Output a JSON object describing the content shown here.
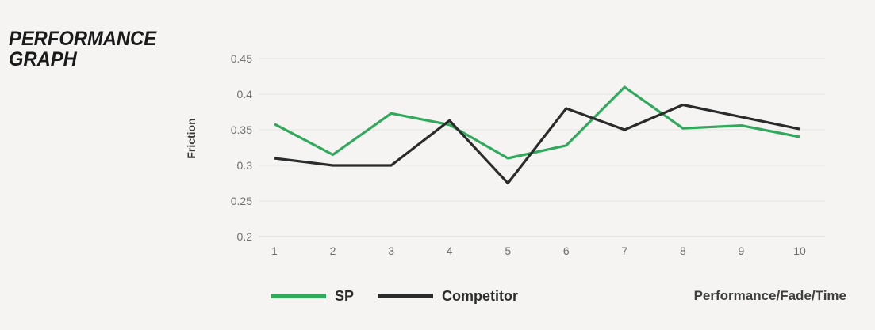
{
  "header": {
    "title_line1": "PERFORMANCE",
    "title_line2": "GRAPH"
  },
  "colors": {
    "background": "#f5f4f2",
    "grid_line": "#e8e7e4",
    "axis_line": "#dcdbd8",
    "tick_text": "#6f6f6f",
    "title_text": "#1a1a1a",
    "sp_green": "#31a95c",
    "competitor_black": "#2b2b2b"
  },
  "chart_data": {
    "type": "line",
    "title": "PERFORMANCE GRAPH",
    "x": [
      1,
      2,
      3,
      4,
      5,
      6,
      7,
      8,
      9,
      10
    ],
    "xticks": [
      "1",
      "2",
      "3",
      "4",
      "5",
      "6",
      "7",
      "8",
      "9",
      "10"
    ],
    "series": [
      {
        "name": "SP",
        "color": "#31a95c",
        "values": [
          0.358,
          0.315,
          0.373,
          0.357,
          0.31,
          0.328,
          0.41,
          0.352,
          0.356,
          0.34
        ]
      },
      {
        "name": "Competitor",
        "color": "#2b2b2b",
        "values": [
          0.31,
          0.3,
          0.3,
          0.363,
          0.275,
          0.38,
          0.35,
          0.385,
          0.368,
          0.351
        ]
      }
    ],
    "ylabel": "Friction",
    "xlabel": "",
    "ylim": [
      0.2,
      0.45
    ],
    "yticks": [
      0.45,
      0.4,
      0.35,
      0.3,
      0.25,
      0.2
    ],
    "grid": "horizontal",
    "legend_position": "bottom-left",
    "footnote": "Performance/Fade/Time"
  }
}
